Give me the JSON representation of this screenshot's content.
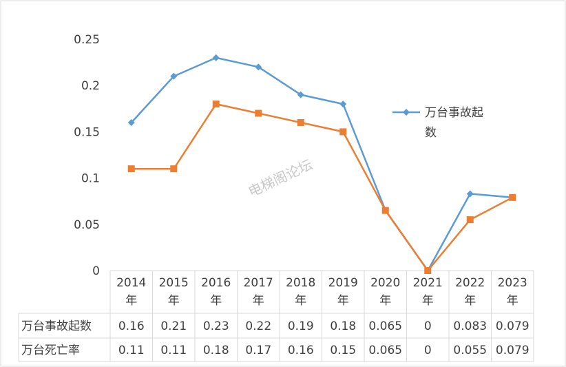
{
  "watermark": "电梯阁论坛",
  "chart_data": {
    "type": "line",
    "title": "",
    "xlabel": "",
    "ylabel": "",
    "categories": [
      "2014年",
      "2015年",
      "2016年",
      "2017年",
      "2018年",
      "2019年",
      "2020年",
      "2021年",
      "2022年",
      "2023年"
    ],
    "category_year": [
      "2014",
      "2015",
      "2016",
      "2017",
      "2018",
      "2019",
      "2020",
      "2021",
      "2022",
      "2023"
    ],
    "category_suffix": "年",
    "ylim": [
      0,
      0.25
    ],
    "yticks": [
      0,
      0.05,
      0.1,
      0.15,
      0.2,
      0.25
    ],
    "ytick_labels": [
      "0",
      "0.05",
      "0.1",
      "0.15",
      "0.2",
      "0.25"
    ],
    "grid": false,
    "legend_position": "right",
    "legend_label_lines": [
      "万台事故起",
      "数"
    ],
    "series": [
      {
        "name": "万台事故起数",
        "color": "#5B9BD5",
        "marker": "diamond",
        "values": [
          0.16,
          0.21,
          0.23,
          0.22,
          0.19,
          0.18,
          0.065,
          0,
          0.083,
          0.079
        ],
        "labels": [
          "0.16",
          "0.21",
          "0.23",
          "0.22",
          "0.19",
          "0.18",
          "0.065",
          "0",
          "0.083",
          "0.079"
        ]
      },
      {
        "name": "万台死亡率",
        "color": "#ED7D31",
        "marker": "square",
        "values": [
          0.11,
          0.11,
          0.18,
          0.17,
          0.16,
          0.15,
          0.065,
          0,
          0.055,
          0.079
        ],
        "labels": [
          "0.11",
          "0.11",
          "0.18",
          "0.17",
          "0.16",
          "0.15",
          "0.065",
          "0",
          "0.055",
          "0.079"
        ]
      }
    ]
  }
}
